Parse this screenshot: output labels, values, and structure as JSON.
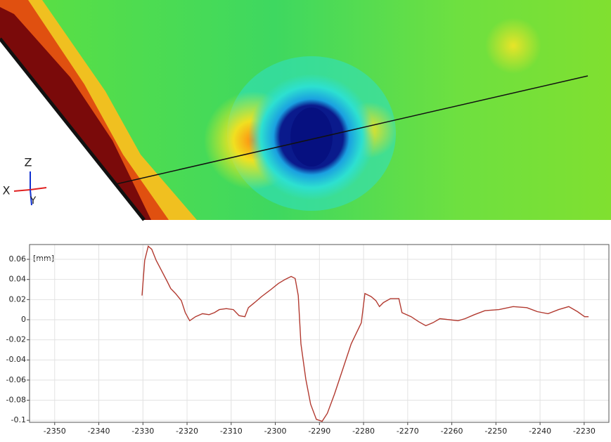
{
  "orientation_axes": {
    "z": "Z",
    "x": "X",
    "y": "Y"
  },
  "chart_data": {
    "type": "line",
    "ylabel": "[mm]",
    "color": "#b23a30",
    "grid": true,
    "x": [
      -2330.2,
      -2329.6,
      -2328.8,
      -2328,
      -2327,
      -2325.8,
      -2324.5,
      -2323.7,
      -2322.6,
      -2321.3,
      -2320.4,
      -2319.4,
      -2318.1,
      -2316.5,
      -2315,
      -2313.8,
      -2312.7,
      -2311.1,
      -2309.5,
      -2308.2,
      -2306.9,
      -2306.1,
      -2304.7,
      -2303.1,
      -2301,
      -2299.3,
      -2297.8,
      -2296.4,
      -2295.5,
      -2294.8,
      -2294.2,
      -2293.1,
      -2292,
      -2290.7,
      -2289.4,
      -2288.2,
      -2286.6,
      -2284.7,
      -2282.8,
      -2280.5,
      -2279.7,
      -2278.3,
      -2277.2,
      -2276.4,
      -2275.5,
      -2273.9,
      -2272,
      -2271.3,
      -2269.2,
      -2267.5,
      -2265.9,
      -2264.3,
      -2262.7,
      -2260.5,
      -2258.6,
      -2257,
      -2254.9,
      -2252.5,
      -2249.3,
      -2246.1,
      -2243,
      -2240.6,
      -2238.2,
      -2235.8,
      -2233.5,
      -2231.5,
      -2229.9,
      -2229
    ],
    "values": [
      0.024,
      0.059,
      0.073,
      0.07,
      0.059,
      0.049,
      0.038,
      0.031,
      0.026,
      0.019,
      0.007,
      -0.001,
      0.003,
      0.006,
      0.005,
      0.007,
      0.01,
      0.011,
      0.01,
      0.004,
      0.003,
      0.012,
      0.017,
      0.023,
      0.03,
      0.036,
      0.04,
      0.043,
      0.041,
      0.024,
      -0.024,
      -0.059,
      -0.084,
      -0.099,
      -0.101,
      -0.093,
      -0.074,
      -0.049,
      -0.024,
      -0.003,
      0.026,
      0.023,
      0.019,
      0.013,
      0.017,
      0.021,
      0.021,
      0.007,
      0.003,
      -0.002,
      -0.006,
      -0.003,
      0.001,
      0,
      -0.001,
      0.001,
      0.005,
      0.009,
      0.01,
      0.013,
      0.012,
      0.008,
      0.006,
      0.01,
      0.013,
      0.008,
      0.003,
      0.003
    ],
    "xlim": [
      -2355.7,
      -2224.4
    ],
    "ylim": [
      -0.102,
      0.0747
    ],
    "xticks": [
      -2350,
      -2340,
      -2330,
      -2320,
      -2310,
      -2300,
      -2290,
      -2280,
      -2270,
      -2260,
      -2250,
      -2240,
      -2230
    ],
    "yticks": [
      0.06,
      0.04,
      0.02,
      0,
      -0.02,
      -0.04,
      -0.06,
      -0.08,
      -0.1
    ]
  }
}
